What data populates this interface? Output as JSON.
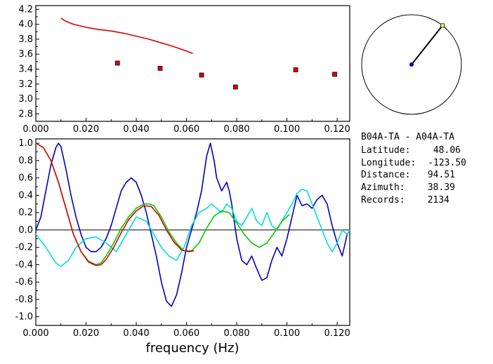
{
  "info": {
    "pair": "B04A-TA  - A04A-TA",
    "latitude_label": "Latitude:",
    "latitude": "48.06",
    "longitude_label": "Longitude:",
    "longitude": "-123.50",
    "distance_label": "Distance:",
    "distance": "94.51",
    "azimuth_label": "Azimuth:",
    "azimuth": "38.39",
    "records_label": "Records:",
    "records": "2134"
  },
  "compass": {
    "azimuth_deg": 38.39
  },
  "chart_data": [
    {
      "type": "scatter",
      "name": "top-panel",
      "xlim": [
        0.0,
        0.125
      ],
      "ylim": [
        2.7,
        4.25
      ],
      "xticks": [
        "0.000",
        "0.020",
        "0.040",
        "0.060",
        "0.080",
        "0.100",
        "0.120"
      ],
      "yticks": [
        "2.8",
        "3.0",
        "3.2",
        "3.4",
        "3.6",
        "3.8",
        "4.0",
        "4.2"
      ],
      "xlabel": "",
      "ylabel": "",
      "series": [
        {
          "kind": "line",
          "color": "#dd0000",
          "x": [
            0.01,
            0.012,
            0.015,
            0.02,
            0.025,
            0.03,
            0.035,
            0.04,
            0.045,
            0.05,
            0.055,
            0.06,
            0.0625
          ],
          "y": [
            4.08,
            4.04,
            4.0,
            3.96,
            3.93,
            3.91,
            3.88,
            3.84,
            3.8,
            3.75,
            3.7,
            3.64,
            3.61
          ]
        },
        {
          "kind": "points",
          "color": "#dd0000",
          "x": [
            0.0325,
            0.0495,
            0.066,
            0.0795,
            0.1035,
            0.119
          ],
          "y": [
            3.48,
            3.41,
            3.32,
            3.16,
            3.39,
            3.33
          ]
        }
      ]
    },
    {
      "type": "line",
      "name": "bottom-panel",
      "xlim": [
        0.0,
        0.125
      ],
      "ylim": [
        -1.1,
        1.05
      ],
      "xticks": [
        "0.000",
        "0.020",
        "0.040",
        "0.060",
        "0.080",
        "0.100",
        "0.120"
      ],
      "yticks": [
        "1.0",
        "0.8",
        "0.6",
        "0.4",
        "0.2",
        "0.0",
        "-0.2",
        "-0.4",
        "-0.6",
        "-0.8",
        "-1.0"
      ],
      "xlabel": "frequency (Hz)",
      "ylabel": "",
      "series": [
        {
          "color": "#0000bb",
          "x": [
            0.0,
            0.002,
            0.004,
            0.006,
            0.008,
            0.009,
            0.01,
            0.012,
            0.014,
            0.016,
            0.018,
            0.02,
            0.022,
            0.024,
            0.026,
            0.028,
            0.03,
            0.032,
            0.034,
            0.036,
            0.038,
            0.04,
            0.042,
            0.044,
            0.046,
            0.048,
            0.05,
            0.052,
            0.054,
            0.056,
            0.058,
            0.06,
            0.062,
            0.064,
            0.066,
            0.068,
            0.0695,
            0.071,
            0.072,
            0.074,
            0.076,
            0.077,
            0.078,
            0.08,
            0.082,
            0.084,
            0.086,
            0.088,
            0.09,
            0.092,
            0.094,
            0.096,
            0.098,
            0.1,
            0.102,
            0.104,
            0.106,
            0.108,
            0.11,
            0.112,
            0.114,
            0.116,
            0.118,
            0.12,
            0.122,
            0.124,
            0.125
          ],
          "y": [
            0.0,
            0.15,
            0.45,
            0.75,
            0.95,
            1.0,
            0.96,
            0.7,
            0.4,
            0.15,
            -0.05,
            -0.2,
            -0.25,
            -0.25,
            -0.2,
            -0.1,
            0.05,
            0.25,
            0.45,
            0.55,
            0.6,
            0.55,
            0.4,
            0.2,
            -0.05,
            -0.3,
            -0.6,
            -0.82,
            -0.88,
            -0.75,
            -0.5,
            -0.2,
            0.0,
            0.2,
            0.45,
            0.85,
            1.0,
            0.8,
            0.6,
            0.45,
            0.55,
            0.45,
            0.3,
            -0.1,
            -0.35,
            -0.4,
            -0.3,
            -0.45,
            -0.58,
            -0.55,
            -0.35,
            -0.2,
            -0.3,
            -0.1,
            0.15,
            0.4,
            0.28,
            0.3,
            0.25,
            0.35,
            0.4,
            0.3,
            0.05,
            -0.15,
            -0.3,
            -0.05,
            0.0
          ]
        },
        {
          "color": "#00dddd",
          "x": [
            0.0,
            0.004,
            0.008,
            0.01,
            0.013,
            0.016,
            0.02,
            0.024,
            0.028,
            0.032,
            0.036,
            0.04,
            0.044,
            0.047,
            0.05,
            0.053,
            0.056,
            0.059,
            0.062,
            0.065,
            0.068,
            0.07,
            0.072,
            0.074,
            0.076,
            0.078,
            0.08,
            0.082,
            0.084,
            0.086,
            0.088,
            0.09,
            0.092,
            0.094,
            0.096,
            0.098,
            0.1,
            0.102,
            0.104,
            0.106,
            0.108,
            0.11,
            0.112,
            0.114,
            0.116,
            0.118,
            0.12,
            0.122,
            0.124,
            0.125
          ],
          "y": [
            -0.05,
            -0.2,
            -0.38,
            -0.42,
            -0.35,
            -0.2,
            -0.1,
            -0.08,
            -0.15,
            -0.25,
            -0.05,
            0.15,
            0.1,
            -0.05,
            -0.2,
            -0.3,
            -0.35,
            -0.2,
            0.05,
            0.2,
            0.25,
            0.3,
            0.25,
            0.2,
            0.3,
            0.25,
            0.1,
            0.05,
            0.15,
            0.25,
            0.1,
            0.05,
            0.2,
            0.05,
            0.0,
            0.1,
            0.2,
            0.3,
            0.42,
            0.47,
            0.45,
            0.3,
            0.15,
            0.0,
            -0.15,
            -0.25,
            -0.15,
            0.0,
            -0.05,
            0.0
          ]
        },
        {
          "color": "#00cc00",
          "x": [
            0.0,
            0.003,
            0.006,
            0.009,
            0.012,
            0.015,
            0.018,
            0.021,
            0.024,
            0.026,
            0.028,
            0.031,
            0.034,
            0.037,
            0.04,
            0.043,
            0.045,
            0.047,
            0.05,
            0.053,
            0.056,
            0.059,
            0.062,
            0.065,
            0.068,
            0.071,
            0.074,
            0.077,
            0.08,
            0.083,
            0.086,
            0.089,
            0.092,
            0.095,
            0.098,
            0.101
          ],
          "y": [
            1.0,
            0.95,
            0.8,
            0.55,
            0.25,
            -0.05,
            -0.25,
            -0.36,
            -0.4,
            -0.38,
            -0.3,
            -0.15,
            0.02,
            0.15,
            0.25,
            0.3,
            0.3,
            0.28,
            0.15,
            -0.02,
            -0.15,
            -0.24,
            -0.24,
            -0.15,
            0.02,
            0.16,
            0.22,
            0.2,
            0.08,
            -0.05,
            -0.15,
            -0.2,
            -0.15,
            -0.03,
            0.1,
            0.18
          ]
        },
        {
          "color": "#dd0000",
          "x": [
            0.0,
            0.003,
            0.006,
            0.009,
            0.012,
            0.015,
            0.018,
            0.021,
            0.024,
            0.026,
            0.028,
            0.031,
            0.034,
            0.037,
            0.04,
            0.043,
            0.046,
            0.049,
            0.052,
            0.055,
            0.058,
            0.061,
            0.063
          ],
          "y": [
            1.0,
            0.95,
            0.8,
            0.55,
            0.25,
            -0.05,
            -0.25,
            -0.37,
            -0.41,
            -0.4,
            -0.34,
            -0.2,
            -0.03,
            0.12,
            0.22,
            0.28,
            0.27,
            0.17,
            0.0,
            -0.14,
            -0.23,
            -0.25,
            -0.24
          ]
        }
      ]
    }
  ]
}
